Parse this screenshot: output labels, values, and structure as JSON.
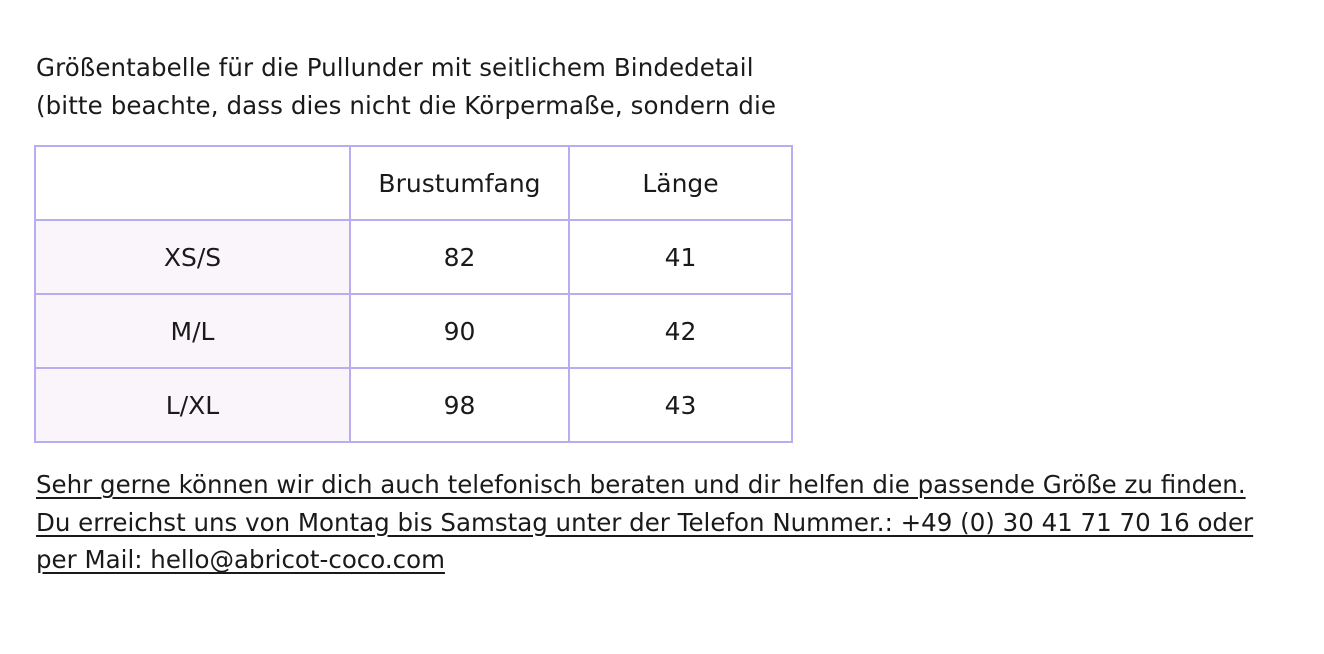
{
  "intro": {
    "line1": "Größentabelle für die Pullunder mit seitlichem Bindedetail",
    "line2": "(bitte beachte, dass dies nicht die Körpermaße, sondern die"
  },
  "table": {
    "headers": [
      "",
      "Brustumfang",
      "Länge"
    ],
    "rows": [
      {
        "size": "XS/S",
        "chest": "82",
        "length": "41"
      },
      {
        "size": "M/L",
        "chest": "90",
        "length": "42"
      },
      {
        "size": "L/XL",
        "chest": "98",
        "length": "43"
      }
    ],
    "border_color": "#b9adf0",
    "label_bg_color": "#f9f5fb"
  },
  "footer": {
    "line1": "Sehr gerne können wir dich auch telefonisch beraten und dir helfen die passende Größe zu finden.",
    "line2": "Du erreichst uns von Montag bis Samstag unter der Telefon Nummer.: +49 (0) 30 41 71 70 16 oder",
    "line3": "per Mail: hello@abricot-coco.com"
  }
}
